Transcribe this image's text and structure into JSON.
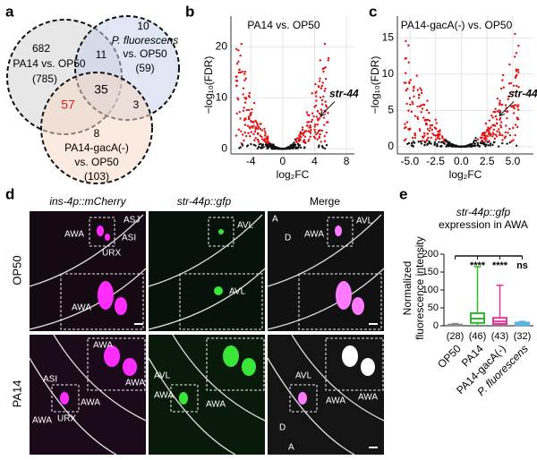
{
  "panel_a": {
    "label": "a",
    "pa14_only": "682",
    "pa14_name": "PA14 vs. OP50",
    "pa14_total": "(785)",
    "pfl_only": "10",
    "pfl_name": [
      "P. fluorescens",
      "vs. OP50"
    ],
    "pfl_total": "(59)",
    "gaca_only": "8",
    "gaca_name": [
      "PA14-gacA(-)",
      "vs. OP50"
    ],
    "gaca_total": "(103)",
    "pa14_pfl": "11",
    "pa14_gaca": "57",
    "pfl_gaca": "3",
    "all_three": "35"
  },
  "panel_b": {
    "label": "b",
    "title": "PA14 vs. OP50",
    "y_label": "−log₁₀(FDR)",
    "x_label": "log₂FC",
    "annotation": "str-44",
    "xlim": [
      -6.5,
      9
    ],
    "xticks": [
      -4,
      0,
      4,
      8
    ],
    "ylim": [
      -1,
      26
    ],
    "yticks": [
      0,
      10,
      20
    ]
  },
  "panel_c": {
    "label": "c",
    "title": "PA14-gacA(-) vs. OP50",
    "y_label": "−log₁₀(FDR)",
    "x_label": "log₂FC",
    "annotation": "str-44",
    "xlim": [
      -6.2,
      7
    ],
    "xticks": [
      {
        "value": -5,
        "label": "-5.0"
      },
      -2.5,
      {
        "value": 0,
        "label": "0.0"
      },
      2.5,
      {
        "value": 5,
        "label": "5.0"
      }
    ],
    "ylim": [
      -1,
      18
    ],
    "yticks": [
      0,
      5,
      10,
      15
    ]
  },
  "panel_d": {
    "label": "d",
    "column_headers": [
      "ins-4p::mCherry",
      "str-44p::gfp",
      "Merge"
    ],
    "rows": [
      {
        "label": "OP50",
        "images": [
          {
            "labels": [
              "ASJ",
              "AWA",
              "ASI",
              "URX",
              "AWA"
            ]
          },
          {
            "labels": [
              "AVL",
              "AVL"
            ]
          },
          {
            "labels": [
              "A",
              "D",
              "AWA",
              "AVL"
            ]
          }
        ]
      },
      {
        "label": "PA14",
        "images": [
          {
            "labels": [
              "ASI",
              "AWA",
              "AWA",
              "AWA",
              "URX",
              "AWA"
            ]
          },
          {
            "labels": [
              "AVL",
              "AWA",
              "AWA"
            ]
          },
          {
            "labels": [
              "AVL",
              "AWA",
              "AWA",
              "D",
              "A"
            ]
          }
        ]
      }
    ]
  },
  "panel_e": {
    "label": "e",
    "title": [
      "str-44p::gfp",
      "expression in AWA"
    ],
    "y_label": [
      "Normalized",
      "fluorescence intensity"
    ],
    "ylim": [
      0,
      200
    ],
    "yticks": [
      0,
      50,
      100,
      150,
      200
    ],
    "groups": [
      {
        "name": "OP50",
        "n": "(28)",
        "color": "#888888",
        "box": {
          "min": 0,
          "q1": 1,
          "median": 2,
          "q3": 3,
          "max": 6
        }
      },
      {
        "name": "PA14",
        "n": "(46)",
        "color": "#2db82d",
        "box": {
          "min": 0,
          "q1": 8,
          "median": 20,
          "q3": 35,
          "max": 165
        }
      },
      {
        "name": "PA14-gacA(-)",
        "n": "(43)",
        "color": "#e0379a",
        "box": {
          "min": 0,
          "q1": 5,
          "median": 12,
          "q3": 22,
          "max": 113
        }
      },
      {
        "name": "P. fluorescens",
        "n": "(32)",
        "color": "#5ab4e0",
        "box": {
          "min": 0,
          "q1": 2,
          "median": 5,
          "q3": 9,
          "max": 12
        }
      }
    ],
    "significance": [
      "****",
      "****",
      "ns"
    ]
  }
}
